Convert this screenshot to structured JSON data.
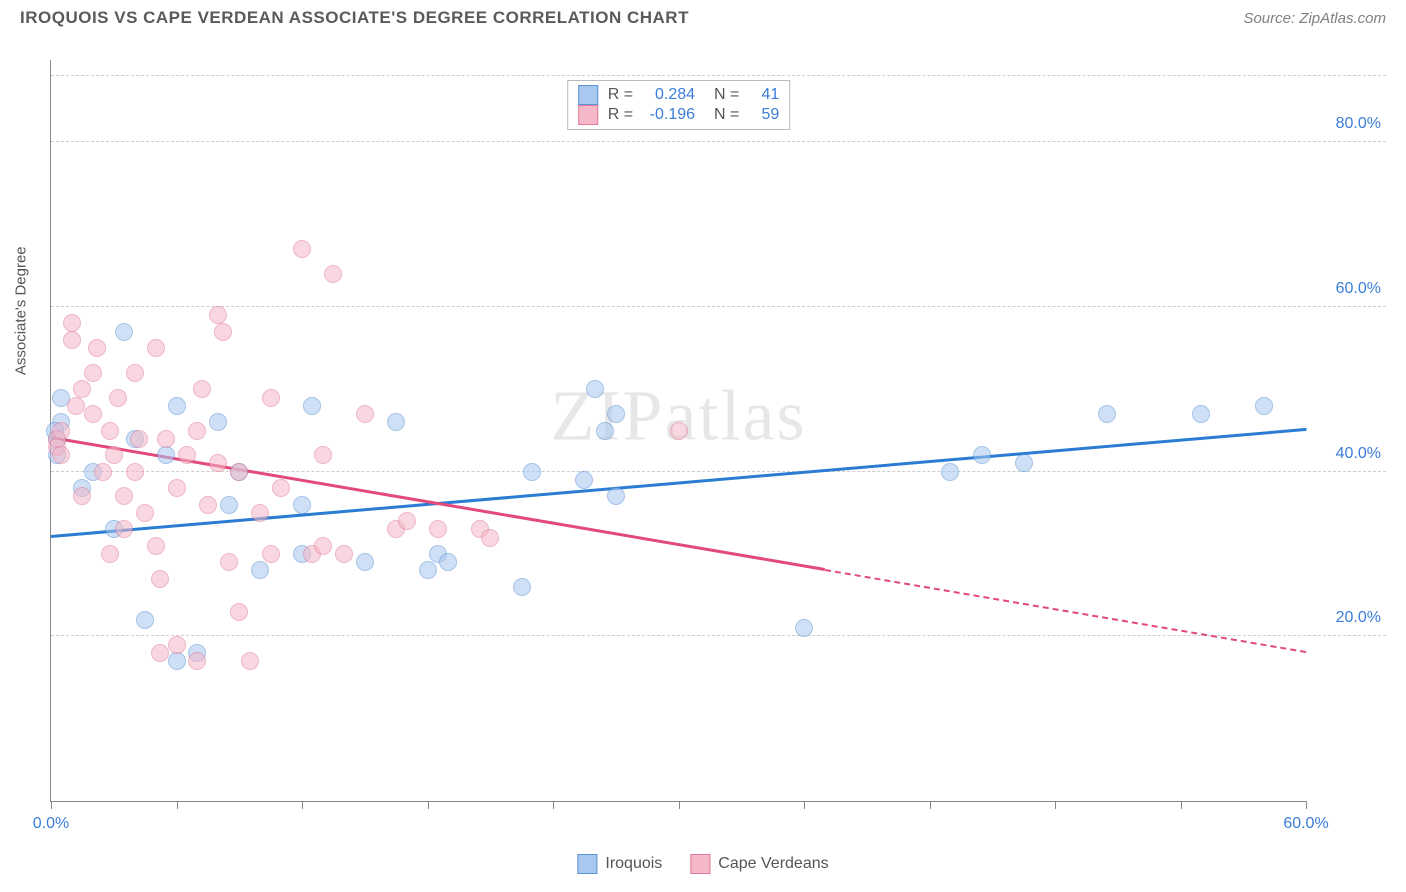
{
  "title": "IROQUOIS VS CAPE VERDEAN ASSOCIATE'S DEGREE CORRELATION CHART",
  "source": "Source: ZipAtlas.com",
  "watermark": "ZIPatlas",
  "chart": {
    "type": "scatter",
    "y_axis_label": "Associate's Degree",
    "xlim": [
      0,
      60
    ],
    "ylim": [
      0,
      90
    ],
    "x_ticks": [
      0,
      6,
      12,
      18,
      24,
      30,
      36,
      42,
      48,
      54,
      60
    ],
    "x_labels": {
      "0": "0.0%",
      "60": "60.0%"
    },
    "y_gridlines": [
      20,
      40,
      60,
      80,
      88
    ],
    "y_labels": {
      "20": "20.0%",
      "40": "40.0%",
      "60": "60.0%",
      "80": "80.0%"
    },
    "background_color": "#ffffff",
    "grid_color": "#cccccc",
    "axis_color": "#888888",
    "tick_label_color": "#3b7dd8",
    "marker_radius": 9,
    "marker_opacity": 0.55,
    "series": [
      {
        "name": "Iroquois",
        "fill_color": "#a8c8f0",
        "stroke_color": "#5b93d6",
        "R": "0.284",
        "N": "41",
        "trend": {
          "x1": 0,
          "y1": 32,
          "x2": 60,
          "y2": 45,
          "solid_until_x": 60,
          "color": "#2b7cd3"
        },
        "points": [
          [
            0.3,
            44
          ],
          [
            0.3,
            42
          ],
          [
            0.5,
            46
          ],
          [
            0.5,
            49
          ],
          [
            1.5,
            38
          ],
          [
            3,
            33
          ],
          [
            3.5,
            57
          ],
          [
            4.5,
            22
          ],
          [
            5.5,
            42
          ],
          [
            6,
            17
          ],
          [
            6,
            48
          ],
          [
            7,
            18
          ],
          [
            8,
            46
          ],
          [
            8.5,
            36
          ],
          [
            10,
            28
          ],
          [
            12,
            30
          ],
          [
            12,
            36
          ],
          [
            12.5,
            48
          ],
          [
            15,
            29
          ],
          [
            16.5,
            46
          ],
          [
            18,
            28
          ],
          [
            18.5,
            30
          ],
          [
            19,
            29
          ],
          [
            22.5,
            26
          ],
          [
            23,
            40
          ],
          [
            25.5,
            39
          ],
          [
            26,
            50
          ],
          [
            26.5,
            45
          ],
          [
            27,
            47
          ],
          [
            27,
            37
          ],
          [
            36,
            21
          ],
          [
            43,
            40
          ],
          [
            44.5,
            42
          ],
          [
            46.5,
            41
          ],
          [
            50.5,
            47
          ],
          [
            55,
            47
          ],
          [
            58,
            48
          ],
          [
            0.2,
            45
          ],
          [
            2,
            40
          ],
          [
            4,
            44
          ],
          [
            9,
            40
          ]
        ]
      },
      {
        "name": "Cape Verdeans",
        "fill_color": "#f5b8c8",
        "stroke_color": "#e27a9a",
        "R": "-0.196",
        "N": "59",
        "trend": {
          "x1": 0,
          "y1": 44,
          "x2": 60,
          "y2": 18,
          "solid_until_x": 37,
          "color": "#e24a7a"
        },
        "points": [
          [
            0.3,
            44
          ],
          [
            0.3,
            43
          ],
          [
            0.5,
            45
          ],
          [
            0.5,
            42
          ],
          [
            1,
            58
          ],
          [
            1,
            56
          ],
          [
            1.2,
            48
          ],
          [
            1.5,
            50
          ],
          [
            1.5,
            37
          ],
          [
            2,
            52
          ],
          [
            2,
            47
          ],
          [
            2.2,
            55
          ],
          [
            2.5,
            40
          ],
          [
            2.8,
            45
          ],
          [
            2.8,
            30
          ],
          [
            3,
            42
          ],
          [
            3.2,
            49
          ],
          [
            3.5,
            37
          ],
          [
            3.5,
            33
          ],
          [
            4,
            52
          ],
          [
            4,
            40
          ],
          [
            4.2,
            44
          ],
          [
            4.5,
            35
          ],
          [
            5,
            55
          ],
          [
            5,
            31
          ],
          [
            5.2,
            27
          ],
          [
            5.2,
            18
          ],
          [
            5.5,
            44
          ],
          [
            6,
            38
          ],
          [
            6,
            19
          ],
          [
            6.5,
            42
          ],
          [
            7,
            45
          ],
          [
            7,
            17
          ],
          [
            7.2,
            50
          ],
          [
            7.5,
            36
          ],
          [
            8,
            41
          ],
          [
            8.2,
            57
          ],
          [
            8.5,
            29
          ],
          [
            9,
            23
          ],
          [
            9,
            40
          ],
          [
            9.5,
            17
          ],
          [
            10,
            35
          ],
          [
            10.5,
            49
          ],
          [
            10.5,
            30
          ],
          [
            11,
            38
          ],
          [
            12,
            67
          ],
          [
            12.5,
            30
          ],
          [
            13,
            31
          ],
          [
            13,
            42
          ],
          [
            13.5,
            64
          ],
          [
            14,
            30
          ],
          [
            15,
            47
          ],
          [
            16.5,
            33
          ],
          [
            17,
            34
          ],
          [
            18.5,
            33
          ],
          [
            20.5,
            33
          ],
          [
            21,
            32
          ],
          [
            30,
            45
          ],
          [
            8,
            59
          ]
        ]
      }
    ],
    "legend_labels": [
      "Iroquois",
      "Cape Verdeans"
    ]
  }
}
